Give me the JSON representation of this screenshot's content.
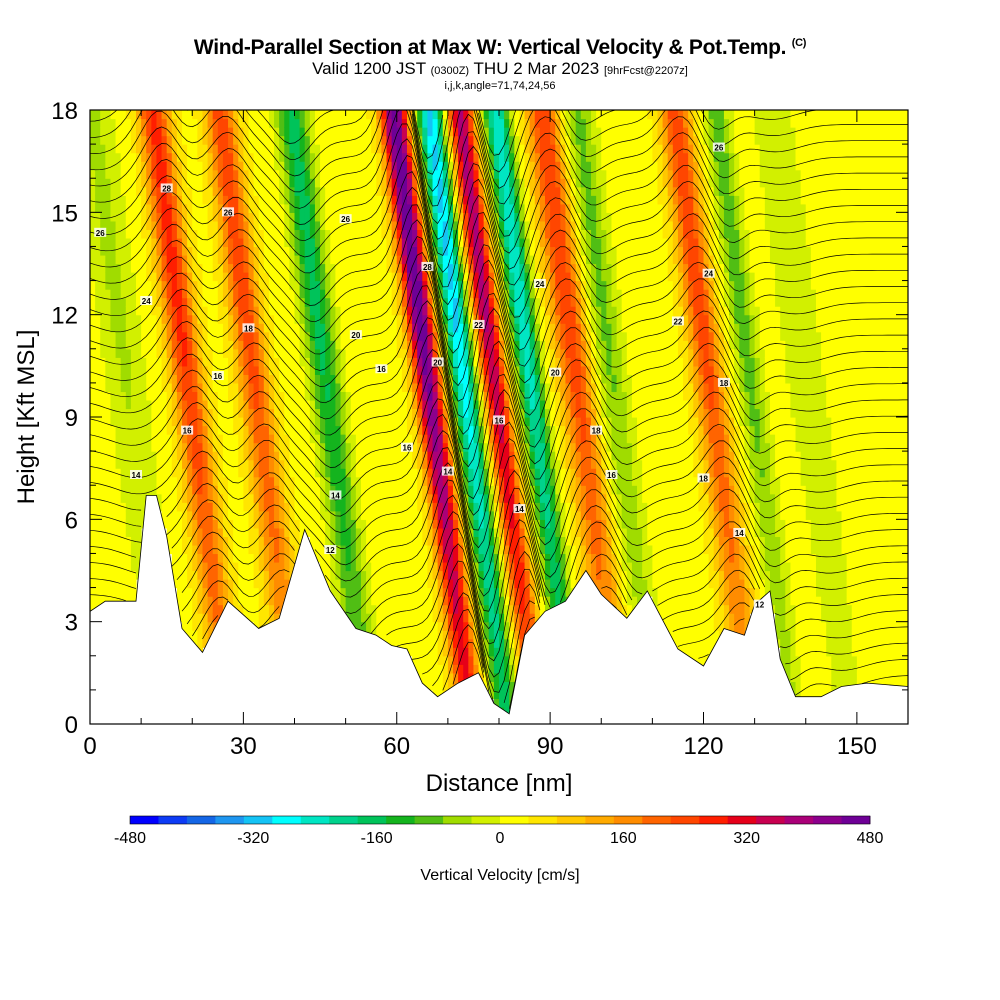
{
  "title": {
    "main": "Wind-Parallel Section at Max W: Vertical Velocity & Pot.Temp.",
    "main_mark": "(C)",
    "valid_prefix": "Valid 1200 JST",
    "valid_utc": "(0300Z)",
    "valid_date": "THU 2 Mar 2023",
    "forecast": "[9hrFcst@2207z]",
    "indices": "i,j,k,angle=71,74,24,56"
  },
  "chart_data": {
    "type": "heatmap",
    "xlabel": "Distance [nm]",
    "ylabel": "Height [Kft MSL]",
    "xlim": [
      0,
      160
    ],
    "ylim": [
      0,
      18
    ],
    "x_ticks": [
      "0",
      "30",
      "60",
      "90",
      "120",
      "150"
    ],
    "x_tick_values": [
      0,
      30,
      60,
      90,
      120,
      150
    ],
    "y_ticks": [
      "0",
      "3",
      "6",
      "9",
      "12",
      "15",
      "18"
    ],
    "y_tick_values": [
      0,
      3,
      6,
      9,
      12,
      15,
      18
    ],
    "field": "Vertical Velocity",
    "colorbar": {
      "label": "Vertical Velocity [cm/s]",
      "range": [
        -480,
        480
      ],
      "tick_labels": [
        "-480",
        "-320",
        "-160",
        "0",
        "160",
        "320",
        "480"
      ],
      "tick_values": [
        -480,
        -320,
        -160,
        0,
        160,
        320,
        480
      ],
      "colors": [
        "#0000ff",
        "#0d3bf5",
        "#1466e6",
        "#1e96f0",
        "#14c3f5",
        "#00ffff",
        "#00e6c3",
        "#00d28c",
        "#00c35a",
        "#14b41e",
        "#50be14",
        "#a0dc00",
        "#d2f000",
        "#ffff00",
        "#ffe600",
        "#ffc800",
        "#ffaa00",
        "#ff8c00",
        "#ff6400",
        "#ff4600",
        "#ff1e00",
        "#e60019",
        "#c80050",
        "#aa0078",
        "#8c008c",
        "#6e0096"
      ]
    },
    "terrain_kft": [
      [
        0,
        3.3
      ],
      [
        3,
        3.6
      ],
      [
        9,
        3.6
      ],
      [
        11,
        6.7
      ],
      [
        13,
        6.7
      ],
      [
        15,
        5.5
      ],
      [
        18,
        2.8
      ],
      [
        22,
        2.1
      ],
      [
        27,
        3.6
      ],
      [
        33,
        2.8
      ],
      [
        37,
        3.1
      ],
      [
        42,
        5.7
      ],
      [
        47,
        3.9
      ],
      [
        52,
        2.8
      ],
      [
        56,
        2.6
      ],
      [
        59,
        2.3
      ],
      [
        62,
        2.2
      ],
      [
        65,
        1.2
      ],
      [
        68,
        0.8
      ],
      [
        72,
        1.2
      ],
      [
        76,
        1.5
      ],
      [
        79,
        0.6
      ],
      [
        82,
        0.3
      ],
      [
        85,
        2.6
      ],
      [
        89,
        3.3
      ],
      [
        93,
        3.6
      ],
      [
        97,
        4.5
      ],
      [
        100,
        3.8
      ],
      [
        105,
        3.1
      ],
      [
        109,
        3.9
      ],
      [
        115,
        2.2
      ],
      [
        120,
        1.7
      ],
      [
        124,
        2.8
      ],
      [
        128,
        2.6
      ],
      [
        130,
        3.5
      ],
      [
        133,
        3.9
      ],
      [
        135,
        1.9
      ],
      [
        138,
        0.8
      ],
      [
        143,
        0.8
      ],
      [
        147,
        1.1
      ],
      [
        152,
        1.2
      ],
      [
        160,
        1.1
      ]
    ],
    "theta_contour_labels": [
      "12",
      "14",
      "16",
      "18",
      "20",
      "22",
      "24",
      "26",
      "28"
    ]
  }
}
